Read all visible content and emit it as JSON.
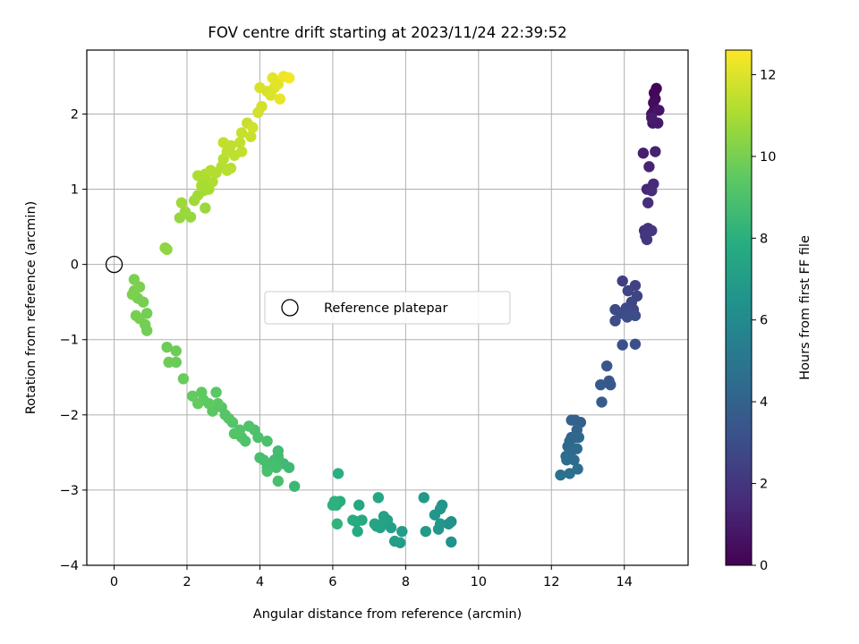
{
  "chart_data": {
    "type": "scatter",
    "title": "FOV centre drift starting at 2023/11/24 22:39:52",
    "xlabel": "Angular distance from reference (arcmin)",
    "ylabel": "Rotation from reference (arcmin)",
    "xlim": [
      -0.75,
      15.75
    ],
    "ylim": [
      -4.0,
      2.85
    ],
    "xticks": [
      0,
      2,
      4,
      6,
      8,
      10,
      12,
      14
    ],
    "yticks": [
      -4,
      -3,
      -2,
      -1,
      0,
      1,
      2
    ],
    "grid": true,
    "legend": {
      "label": "Reference platepar",
      "placement": "center"
    },
    "reference_point": {
      "x": 0.0,
      "y": 0.0
    },
    "colorbar": {
      "label": "Hours from first FF file",
      "range": [
        0,
        12.6
      ],
      "ticks": [
        0,
        2,
        4,
        6,
        8,
        10,
        12
      ],
      "colormap": "viridis"
    },
    "points": [
      {
        "x": 14.88,
        "y": 2.34,
        "t": 0.1
      },
      {
        "x": 14.82,
        "y": 2.28,
        "t": 0.2
      },
      {
        "x": 14.85,
        "y": 2.2,
        "t": 0.3
      },
      {
        "x": 14.8,
        "y": 2.15,
        "t": 0.4
      },
      {
        "x": 14.82,
        "y": 2.05,
        "t": 0.5
      },
      {
        "x": 14.75,
        "y": 2.0,
        "t": 0.6
      },
      {
        "x": 14.95,
        "y": 2.05,
        "t": 0.7
      },
      {
        "x": 14.78,
        "y": 1.88,
        "t": 0.8
      },
      {
        "x": 14.92,
        "y": 1.88,
        "t": 0.9
      },
      {
        "x": 14.75,
        "y": 1.95,
        "t": 1.0
      },
      {
        "x": 14.52,
        "y": 1.48,
        "t": 1.1
      },
      {
        "x": 14.85,
        "y": 1.5,
        "t": 1.2
      },
      {
        "x": 14.68,
        "y": 1.3,
        "t": 1.3
      },
      {
        "x": 14.62,
        "y": 1.0,
        "t": 1.4
      },
      {
        "x": 14.8,
        "y": 1.07,
        "t": 1.5
      },
      {
        "x": 14.75,
        "y": 0.98,
        "t": 1.6
      },
      {
        "x": 14.65,
        "y": 0.82,
        "t": 1.7
      },
      {
        "x": 14.55,
        "y": 0.45,
        "t": 1.8
      },
      {
        "x": 14.65,
        "y": 0.48,
        "t": 1.9
      },
      {
        "x": 14.75,
        "y": 0.45,
        "t": 2.0
      },
      {
        "x": 14.58,
        "y": 0.38,
        "t": 2.0
      },
      {
        "x": 14.62,
        "y": 0.33,
        "t": 2.1
      },
      {
        "x": 13.95,
        "y": -0.22,
        "t": 2.4
      },
      {
        "x": 14.3,
        "y": -0.28,
        "t": 2.5
      },
      {
        "x": 14.1,
        "y": -0.35,
        "t": 2.6
      },
      {
        "x": 14.35,
        "y": -0.42,
        "t": 2.6
      },
      {
        "x": 14.2,
        "y": -0.5,
        "t": 2.7
      },
      {
        "x": 14.25,
        "y": -0.6,
        "t": 2.7
      },
      {
        "x": 13.75,
        "y": -0.6,
        "t": 2.8
      },
      {
        "x": 14.05,
        "y": -0.58,
        "t": 2.8
      },
      {
        "x": 14.15,
        "y": -0.65,
        "t": 2.9
      },
      {
        "x": 13.9,
        "y": -0.65,
        "t": 2.9
      },
      {
        "x": 14.3,
        "y": -0.68,
        "t": 3.0
      },
      {
        "x": 13.75,
        "y": -0.75,
        "t": 3.0
      },
      {
        "x": 14.08,
        "y": -0.7,
        "t": 3.0
      },
      {
        "x": 13.95,
        "y": -1.07,
        "t": 3.1
      },
      {
        "x": 14.3,
        "y": -1.06,
        "t": 3.1
      },
      {
        "x": 13.52,
        "y": -1.35,
        "t": 3.4
      },
      {
        "x": 13.58,
        "y": -1.55,
        "t": 3.5
      },
      {
        "x": 13.62,
        "y": -1.6,
        "t": 3.5
      },
      {
        "x": 13.35,
        "y": -1.6,
        "t": 3.6
      },
      {
        "x": 13.38,
        "y": -1.83,
        "t": 3.7
      },
      {
        "x": 12.8,
        "y": -2.1,
        "t": 3.9
      },
      {
        "x": 12.65,
        "y": -2.07,
        "t": 4.0
      },
      {
        "x": 12.55,
        "y": -2.07,
        "t": 4.0
      },
      {
        "x": 12.7,
        "y": -2.2,
        "t": 4.1
      },
      {
        "x": 12.55,
        "y": -2.3,
        "t": 4.1
      },
      {
        "x": 12.65,
        "y": -2.3,
        "t": 4.2
      },
      {
        "x": 12.5,
        "y": -2.35,
        "t": 4.2
      },
      {
        "x": 12.75,
        "y": -2.3,
        "t": 4.3
      },
      {
        "x": 12.45,
        "y": -2.42,
        "t": 4.3
      },
      {
        "x": 12.7,
        "y": -2.45,
        "t": 4.4
      },
      {
        "x": 12.55,
        "y": -2.48,
        "t": 4.4
      },
      {
        "x": 12.4,
        "y": -2.55,
        "t": 4.5
      },
      {
        "x": 12.62,
        "y": -2.6,
        "t": 4.5
      },
      {
        "x": 12.42,
        "y": -2.6,
        "t": 4.6
      },
      {
        "x": 12.72,
        "y": -2.72,
        "t": 4.6
      },
      {
        "x": 12.5,
        "y": -2.78,
        "t": 4.7
      },
      {
        "x": 12.25,
        "y": -2.8,
        "t": 4.8
      },
      {
        "x": 9.25,
        "y": -3.42,
        "t": 6.3
      },
      {
        "x": 9.18,
        "y": -3.45,
        "t": 6.4
      },
      {
        "x": 9.25,
        "y": -3.69,
        "t": 6.4
      },
      {
        "x": 9.0,
        "y": -3.2,
        "t": 6.5
      },
      {
        "x": 8.95,
        "y": -3.25,
        "t": 6.6
      },
      {
        "x": 8.8,
        "y": -3.33,
        "t": 6.6
      },
      {
        "x": 8.95,
        "y": -3.45,
        "t": 6.7
      },
      {
        "x": 8.9,
        "y": -3.52,
        "t": 6.7
      },
      {
        "x": 8.5,
        "y": -3.1,
        "t": 6.8
      },
      {
        "x": 8.55,
        "y": -3.55,
        "t": 6.9
      },
      {
        "x": 7.9,
        "y": -3.55,
        "t": 7.0
      },
      {
        "x": 7.85,
        "y": -3.7,
        "t": 7.0
      },
      {
        "x": 7.7,
        "y": -3.68,
        "t": 7.1
      },
      {
        "x": 7.6,
        "y": -3.5,
        "t": 7.1
      },
      {
        "x": 7.5,
        "y": -3.4,
        "t": 7.2
      },
      {
        "x": 7.4,
        "y": -3.35,
        "t": 7.2
      },
      {
        "x": 7.35,
        "y": -3.45,
        "t": 7.3
      },
      {
        "x": 7.3,
        "y": -3.5,
        "t": 7.3
      },
      {
        "x": 7.2,
        "y": -3.48,
        "t": 7.4
      },
      {
        "x": 7.15,
        "y": -3.45,
        "t": 7.4
      },
      {
        "x": 7.25,
        "y": -3.1,
        "t": 7.5
      },
      {
        "x": 6.72,
        "y": -3.2,
        "t": 7.6
      },
      {
        "x": 6.8,
        "y": -3.4,
        "t": 7.6
      },
      {
        "x": 6.65,
        "y": -3.42,
        "t": 7.7
      },
      {
        "x": 6.68,
        "y": -3.55,
        "t": 7.7
      },
      {
        "x": 6.55,
        "y": -3.4,
        "t": 7.8
      },
      {
        "x": 6.2,
        "y": -3.15,
        "t": 7.9
      },
      {
        "x": 6.15,
        "y": -2.78,
        "t": 8.0
      },
      {
        "x": 6.1,
        "y": -3.2,
        "t": 8.0
      },
      {
        "x": 6.0,
        "y": -3.2,
        "t": 8.1
      },
      {
        "x": 6.05,
        "y": -3.15,
        "t": 8.1
      },
      {
        "x": 6.12,
        "y": -3.45,
        "t": 8.2
      },
      {
        "x": 4.95,
        "y": -2.95,
        "t": 8.5
      },
      {
        "x": 4.8,
        "y": -2.7,
        "t": 8.6
      },
      {
        "x": 4.65,
        "y": -2.65,
        "t": 8.6
      },
      {
        "x": 4.5,
        "y": -2.55,
        "t": 8.7
      },
      {
        "x": 4.5,
        "y": -2.48,
        "t": 8.7
      },
      {
        "x": 4.4,
        "y": -2.6,
        "t": 8.7
      },
      {
        "x": 4.45,
        "y": -2.7,
        "t": 8.8
      },
      {
        "x": 4.3,
        "y": -2.65,
        "t": 8.8
      },
      {
        "x": 4.2,
        "y": -2.7,
        "t": 8.8
      },
      {
        "x": 4.1,
        "y": -2.6,
        "t": 8.9
      },
      {
        "x": 4.0,
        "y": -2.57,
        "t": 8.9
      },
      {
        "x": 4.2,
        "y": -2.75,
        "t": 8.9
      },
      {
        "x": 4.5,
        "y": -2.88,
        "t": 8.9
      },
      {
        "x": 4.2,
        "y": -2.35,
        "t": 9.0
      },
      {
        "x": 3.95,
        "y": -2.3,
        "t": 9.0
      },
      {
        "x": 3.85,
        "y": -2.2,
        "t": 9.0
      },
      {
        "x": 3.7,
        "y": -2.15,
        "t": 9.1
      },
      {
        "x": 3.6,
        "y": -2.35,
        "t": 9.1
      },
      {
        "x": 3.5,
        "y": -2.3,
        "t": 9.1
      },
      {
        "x": 3.45,
        "y": -2.2,
        "t": 9.2
      },
      {
        "x": 3.3,
        "y": -2.25,
        "t": 9.2
      },
      {
        "x": 3.25,
        "y": -2.1,
        "t": 9.2
      },
      {
        "x": 3.15,
        "y": -2.05,
        "t": 9.3
      },
      {
        "x": 3.05,
        "y": -2.0,
        "t": 9.3
      },
      {
        "x": 2.95,
        "y": -1.9,
        "t": 9.3
      },
      {
        "x": 2.85,
        "y": -1.85,
        "t": 9.4
      },
      {
        "x": 2.8,
        "y": -1.7,
        "t": 9.4
      },
      {
        "x": 2.7,
        "y": -1.95,
        "t": 9.4
      },
      {
        "x": 2.6,
        "y": -1.85,
        "t": 9.5
      },
      {
        "x": 2.45,
        "y": -1.8,
        "t": 9.5
      },
      {
        "x": 2.4,
        "y": -1.7,
        "t": 9.5
      },
      {
        "x": 2.3,
        "y": -1.85,
        "t": 9.6
      },
      {
        "x": 2.15,
        "y": -1.75,
        "t": 9.6
      },
      {
        "x": 1.9,
        "y": -1.52,
        "t": 9.7
      },
      {
        "x": 1.7,
        "y": -1.3,
        "t": 9.7
      },
      {
        "x": 1.5,
        "y": -1.3,
        "t": 9.8
      },
      {
        "x": 1.7,
        "y": -1.15,
        "t": 9.8
      },
      {
        "x": 1.45,
        "y": -1.1,
        "t": 9.8
      },
      {
        "x": 0.9,
        "y": -0.88,
        "t": 9.9
      },
      {
        "x": 0.85,
        "y": -0.8,
        "t": 9.9
      },
      {
        "x": 0.9,
        "y": -0.65,
        "t": 9.9
      },
      {
        "x": 0.7,
        "y": -0.72,
        "t": 10.0
      },
      {
        "x": 0.6,
        "y": -0.68,
        "t": 10.0
      },
      {
        "x": 0.8,
        "y": -0.5,
        "t": 10.0
      },
      {
        "x": 0.65,
        "y": -0.45,
        "t": 10.0
      },
      {
        "x": 0.55,
        "y": -0.35,
        "t": 10.1
      },
      {
        "x": 0.5,
        "y": -0.4,
        "t": 10.1
      },
      {
        "x": 0.7,
        "y": -0.3,
        "t": 10.1
      },
      {
        "x": 0.55,
        "y": -0.2,
        "t": 10.1
      },
      {
        "x": 1.45,
        "y": 0.2,
        "t": 10.5
      },
      {
        "x": 1.4,
        "y": 0.22,
        "t": 10.5
      },
      {
        "x": 1.8,
        "y": 0.62,
        "t": 10.6
      },
      {
        "x": 2.1,
        "y": 0.63,
        "t": 10.6
      },
      {
        "x": 1.95,
        "y": 0.7,
        "t": 10.7
      },
      {
        "x": 2.5,
        "y": 0.75,
        "t": 10.7
      },
      {
        "x": 1.85,
        "y": 0.82,
        "t": 10.8
      },
      {
        "x": 2.2,
        "y": 0.85,
        "t": 10.8
      },
      {
        "x": 2.3,
        "y": 0.92,
        "t": 10.9
      },
      {
        "x": 2.45,
        "y": 0.98,
        "t": 10.9
      },
      {
        "x": 2.6,
        "y": 1.0,
        "t": 11.0
      },
      {
        "x": 2.4,
        "y": 1.05,
        "t": 11.0
      },
      {
        "x": 2.55,
        "y": 1.1,
        "t": 11.0
      },
      {
        "x": 2.7,
        "y": 1.1,
        "t": 11.1
      },
      {
        "x": 2.3,
        "y": 1.18,
        "t": 11.1
      },
      {
        "x": 2.5,
        "y": 1.2,
        "t": 11.1
      },
      {
        "x": 2.65,
        "y": 1.25,
        "t": 11.2
      },
      {
        "x": 2.8,
        "y": 1.22,
        "t": 11.2
      },
      {
        "x": 2.95,
        "y": 1.3,
        "t": 11.2
      },
      {
        "x": 3.1,
        "y": 1.25,
        "t": 11.3
      },
      {
        "x": 3.2,
        "y": 1.28,
        "t": 11.3
      },
      {
        "x": 3.0,
        "y": 1.4,
        "t": 11.3
      },
      {
        "x": 3.1,
        "y": 1.5,
        "t": 11.4
      },
      {
        "x": 3.3,
        "y": 1.45,
        "t": 11.4
      },
      {
        "x": 3.2,
        "y": 1.58,
        "t": 11.4
      },
      {
        "x": 3.0,
        "y": 1.62,
        "t": 11.5
      },
      {
        "x": 3.5,
        "y": 1.5,
        "t": 11.5
      },
      {
        "x": 3.45,
        "y": 1.62,
        "t": 11.5
      },
      {
        "x": 3.5,
        "y": 1.75,
        "t": 11.6
      },
      {
        "x": 3.75,
        "y": 1.7,
        "t": 11.6
      },
      {
        "x": 3.65,
        "y": 1.88,
        "t": 11.6
      },
      {
        "x": 3.8,
        "y": 1.82,
        "t": 11.7
      },
      {
        "x": 3.95,
        "y": 2.02,
        "t": 11.8
      },
      {
        "x": 4.05,
        "y": 2.1,
        "t": 11.8
      },
      {
        "x": 4.0,
        "y": 2.35,
        "t": 11.9
      },
      {
        "x": 4.2,
        "y": 2.3,
        "t": 11.9
      },
      {
        "x": 4.3,
        "y": 2.25,
        "t": 12.0
      },
      {
        "x": 4.4,
        "y": 2.35,
        "t": 12.0
      },
      {
        "x": 4.5,
        "y": 2.4,
        "t": 12.1
      },
      {
        "x": 4.35,
        "y": 2.48,
        "t": 12.1
      },
      {
        "x": 4.55,
        "y": 2.2,
        "t": 12.2
      },
      {
        "x": 4.65,
        "y": 2.5,
        "t": 12.3
      },
      {
        "x": 4.8,
        "y": 2.48,
        "t": 12.4
      }
    ]
  }
}
